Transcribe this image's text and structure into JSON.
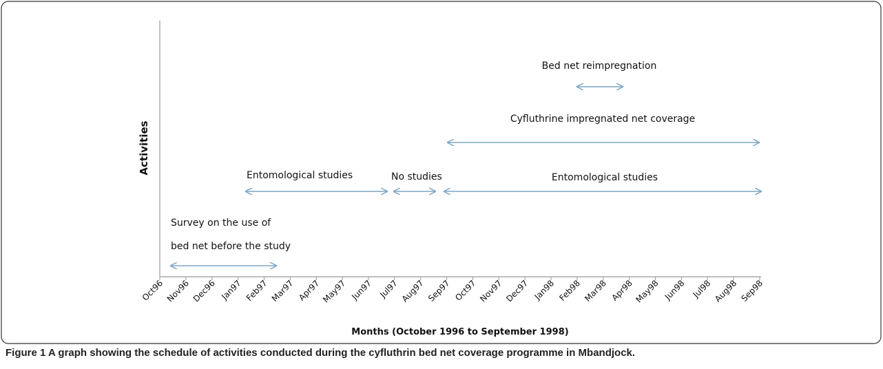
{
  "diagram": {
    "y_axis_label": "Activities",
    "x_axis_label": "Months (October 1996 to September 1998)",
    "months": [
      "Oct96",
      "Nov96",
      "Dec96",
      "Jan97",
      "Feb97",
      "Mar97",
      "Apr97",
      "May97",
      "Jun97",
      "Jul97",
      "Aug97",
      "Sep97",
      "Oct97",
      "Nov97",
      "Dec97",
      "Jan98",
      "Feb98",
      "Mar98",
      "Apr98",
      "May98",
      "Jun98",
      "Jul98",
      "Aug98",
      "Sep98"
    ],
    "activities": [
      {
        "label": "Bed net reimpregnation"
      },
      {
        "label": "Cyfluthrine impregnated net coverage"
      },
      {
        "label": "Entomological studies"
      },
      {
        "label": "No studies"
      },
      {
        "label": "Entomological studies"
      },
      {
        "label_lines": [
          "Survey on  the use of",
          "bed net  before the study"
        ]
      }
    ]
  },
  "caption": {
    "label": "Figure 1",
    "text": "A graph showing the schedule of activities conducted during the cyfluthrin bed net coverage programme in Mbandjock."
  }
}
